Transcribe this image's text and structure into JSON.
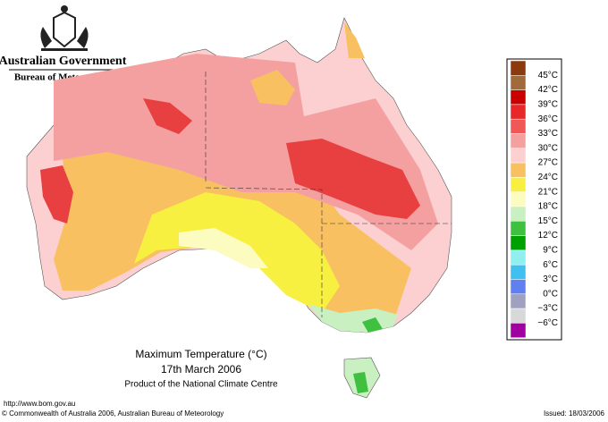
{
  "header": {
    "agency": "Australian Government",
    "bureau": "Bureau of Meteorology"
  },
  "map": {
    "title": "Maximum Temperature (°C)",
    "date": "17th March 2006",
    "product": "Product of the National Climate Centre"
  },
  "legend": {
    "colors": [
      "#8b3a0e",
      "#a06a3a",
      "#c80000",
      "#e82828",
      "#f05858",
      "#f4a0a0",
      "#fcd0d0",
      "#f8c060",
      "#f8f040",
      "#fcfcc0",
      "#c8f0c0",
      "#40c040",
      "#00a000",
      "#90f0f0",
      "#40c0f0",
      "#6080f0",
      "#a0a0c0",
      "#d8d8d8",
      "#a000a0"
    ],
    "labels": [
      "45°C",
      "42°C",
      "39°C",
      "36°C",
      "33°C",
      "30°C",
      "27°C",
      "24°C",
      "21°C",
      "18°C",
      "15°C",
      "12°C",
      "9°C",
      "6°C",
      "3°C",
      "0°C",
      "−3°C",
      "−6°C"
    ]
  },
  "footer": {
    "url": "http://www.bom.gov.au",
    "copyright": "© Commonwealth of Australia 2006, Australian Bureau of Meteorology",
    "issued": "Issued: 18/03/2006"
  }
}
